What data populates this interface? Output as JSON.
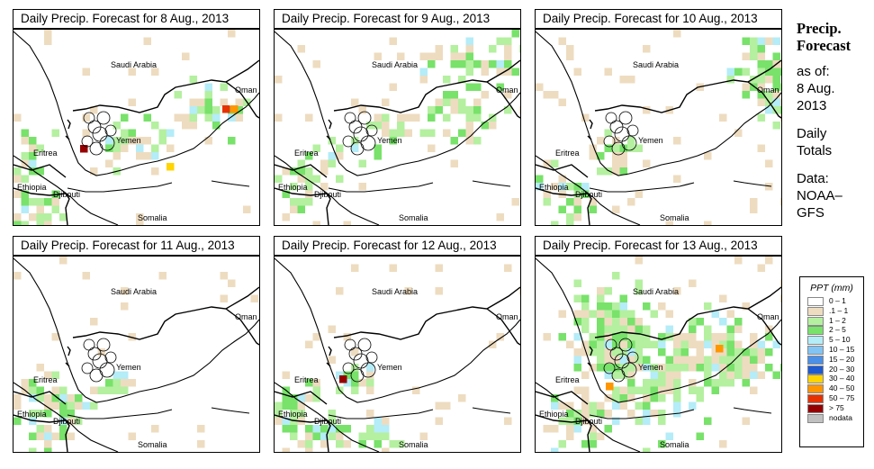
{
  "panels": [
    {
      "title": "Daily Precip. Forecast for  8 Aug., 2013"
    },
    {
      "title": "Daily Precip. Forecast for  9 Aug., 2013"
    },
    {
      "title": "Daily Precip. Forecast for  10 Aug., 2013"
    },
    {
      "title": "Daily Precip. Forecast for  11 Aug., 2013"
    },
    {
      "title": "Daily Precip. Forecast for  12 Aug., 2013"
    },
    {
      "title": "Daily Precip. Forecast for  13 Aug., 2013"
    }
  ],
  "map_labels": {
    "saudi": "Saudi Arabia",
    "oman": "Oman",
    "yemen": "Yemen",
    "eritrea": "Eritrea",
    "ethiopia": "Ethiopia",
    "djibouti": "Djibouti",
    "somalia": "Somalia"
  },
  "sidebar": {
    "title1": "Precip.",
    "title2": "Forecast",
    "asof": "as of:",
    "date1": "8 Aug.",
    "date2": "2013",
    "daily1": "Daily",
    "daily2": "Totals",
    "data1": "Data:",
    "data2": "NOAA–",
    "data3": "GFS"
  },
  "legend": {
    "title": "PPT (mm)",
    "items": [
      {
        "label": "0 – 1",
        "color": "#ffffff"
      },
      {
        "label": ".1 – 1",
        "color": "#eedcc0"
      },
      {
        "label": "1 – 2",
        "color": "#b4f0a0"
      },
      {
        "label": "2 – 5",
        "color": "#78e26a"
      },
      {
        "label": "5 – 10",
        "color": "#b4ecf8"
      },
      {
        "label": "10 – 15",
        "color": "#82c4f4"
      },
      {
        "label": "15 – 20",
        "color": "#4a90e8"
      },
      {
        "label": "20 – 30",
        "color": "#1e5ad2"
      },
      {
        "label": "30 – 40",
        "color": "#ffd400"
      },
      {
        "label": "40 – 50",
        "color": "#ff9600"
      },
      {
        "label": "50 – 75",
        "color": "#e63200"
      },
      {
        "label": "> 75",
        "color": "#960000"
      },
      {
        "label": "nodata",
        "color": "#c0c0c0"
      }
    ]
  }
}
